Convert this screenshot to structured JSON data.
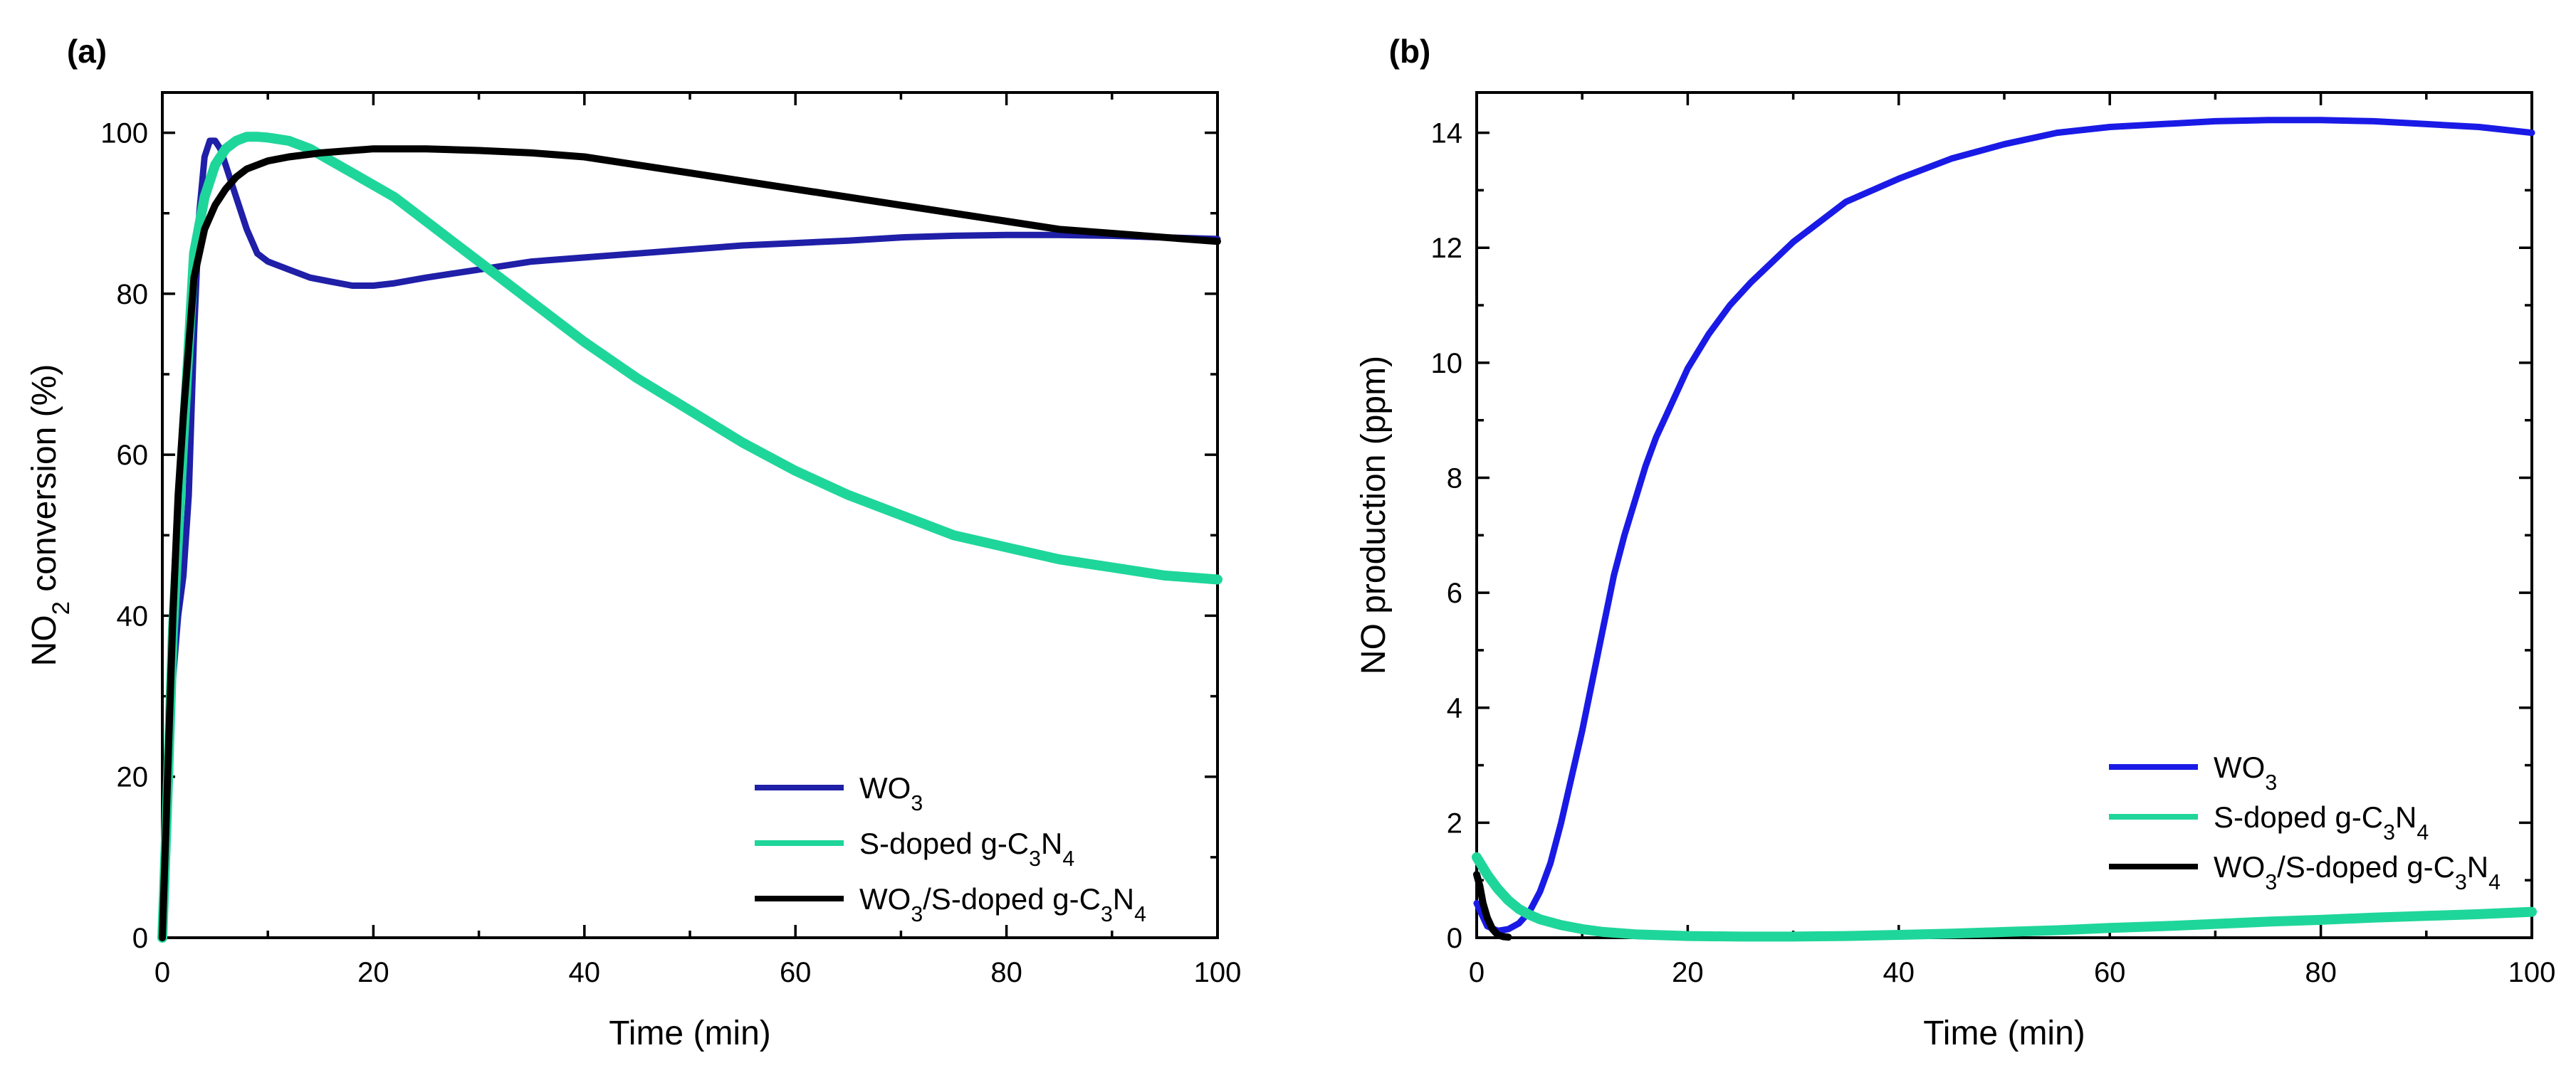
{
  "colors": {
    "WO3_a": "#1f1fa8",
    "WO3_b": "#1a1ae6",
    "SgCN": "#1fd69a",
    "composite": "#000000"
  },
  "chart_data": [
    {
      "type": "line",
      "panel_label": "(a)",
      "xlabel": "Time (min)",
      "ylabel": {
        "pre": "NO",
        "sub": "2",
        "post": " conversion (%)"
      },
      "xlim": [
        0,
        100
      ],
      "ylim": [
        0,
        105
      ],
      "xticks": [
        0,
        20,
        40,
        60,
        80,
        100
      ],
      "yticks": [
        0,
        20,
        40,
        60,
        80,
        100
      ],
      "legend_position": "bottom-right",
      "series": [
        {
          "key": "WO3",
          "label": {
            "pre": "WO",
            "sub": "3",
            "mid": "",
            "sub2": "",
            "post": ""
          },
          "color": "#1f1fa8",
          "x": [
            0,
            0.5,
            1,
            1.5,
            2,
            2.5,
            3,
            3.5,
            4,
            4.5,
            5,
            5.5,
            6,
            7,
            8,
            9,
            10,
            12,
            14,
            16,
            18,
            20,
            22,
            25,
            30,
            35,
            40,
            45,
            50,
            55,
            60,
            65,
            70,
            75,
            80,
            85,
            90,
            95,
            100
          ],
          "y": [
            0,
            15,
            32,
            40,
            45,
            55,
            75,
            90,
            97,
            99,
            99,
            98,
            96,
            92,
            88,
            85,
            84,
            83,
            82,
            81.5,
            81,
            81,
            81.3,
            82,
            83,
            84,
            84.5,
            85,
            85.5,
            86,
            86.3,
            86.6,
            87,
            87.2,
            87.3,
            87.3,
            87.2,
            87,
            86.8
          ]
        },
        {
          "key": "SgCN",
          "label": {
            "pre": "S-doped g-C",
            "sub": "3",
            "mid": "N",
            "sub2": "4",
            "post": ""
          },
          "color": "#1fd69a",
          "x": [
            0,
            0.5,
            1,
            1.5,
            2,
            3,
            4,
            5,
            6,
            7,
            8,
            9,
            10,
            12,
            14,
            16,
            18,
            20,
            22,
            25,
            30,
            35,
            40,
            45,
            50,
            55,
            60,
            65,
            70,
            75,
            80,
            85,
            90,
            95,
            100
          ],
          "y": [
            0,
            18,
            38,
            50,
            62,
            85,
            92,
            96,
            98,
            99,
            99.5,
            99.5,
            99.4,
            99,
            98,
            96.5,
            95,
            93.5,
            92,
            89,
            84,
            79,
            74,
            69.5,
            65.5,
            61.5,
            58,
            55,
            52.5,
            50,
            48.5,
            47,
            46,
            45,
            44.5
          ]
        },
        {
          "key": "composite",
          "label": {
            "pre": "WO",
            "sub": "3",
            "mid": "/S-doped g-C",
            "sub2": "3",
            "post": "N",
            "sub3": "4"
          },
          "color": "#000000",
          "x": [
            0,
            0.5,
            1,
            1.5,
            2,
            3,
            4,
            5,
            6,
            7,
            8,
            10,
            12,
            15,
            20,
            25,
            30,
            35,
            40,
            45,
            50,
            55,
            60,
            65,
            70,
            75,
            80,
            85,
            90,
            95,
            100
          ],
          "y": [
            0,
            20,
            40,
            55,
            65,
            82,
            88,
            91,
            93,
            94.5,
            95.5,
            96.5,
            97,
            97.5,
            98,
            98,
            97.8,
            97.5,
            97,
            96,
            95,
            94,
            93,
            92,
            91,
            90,
            89,
            88,
            87.5,
            87,
            86.5
          ]
        }
      ]
    },
    {
      "type": "line",
      "panel_label": "(b)",
      "xlabel": "Time (min)",
      "ylabel": {
        "pre": "NO production (ppm)",
        "sub": "",
        "post": ""
      },
      "xlim": [
        0,
        100
      ],
      "ylim": [
        0,
        14.7
      ],
      "xticks": [
        0,
        20,
        40,
        60,
        80,
        100
      ],
      "yticks": [
        0,
        2,
        4,
        6,
        8,
        10,
        12,
        14
      ],
      "legend_position": "bottom-center",
      "series": [
        {
          "key": "WO3",
          "label": {
            "pre": "WO",
            "sub": "3",
            "mid": "",
            "sub2": "",
            "post": ""
          },
          "color": "#1a1ae6",
          "x": [
            0,
            1,
            2,
            3,
            4,
            5,
            6,
            7,
            8,
            9,
            10,
            11,
            12,
            13,
            14,
            15,
            16,
            17,
            18,
            20,
            22,
            24,
            26,
            28,
            30,
            35,
            40,
            45,
            50,
            55,
            60,
            65,
            70,
            75,
            80,
            85,
            90,
            95,
            100
          ],
          "y": [
            0.6,
            0.2,
            0.12,
            0.15,
            0.25,
            0.45,
            0.8,
            1.3,
            2.0,
            2.8,
            3.6,
            4.5,
            5.4,
            6.3,
            7.0,
            7.6,
            8.2,
            8.7,
            9.1,
            9.9,
            10.5,
            11.0,
            11.4,
            11.75,
            12.1,
            12.8,
            13.2,
            13.55,
            13.8,
            14.0,
            14.1,
            14.15,
            14.2,
            14.22,
            14.22,
            14.2,
            14.15,
            14.1,
            14.0
          ]
        },
        {
          "key": "SgCN",
          "label": {
            "pre": "S-doped g-C",
            "sub": "3",
            "mid": "N",
            "sub2": "4",
            "post": ""
          },
          "color": "#1fd69a",
          "x": [
            0,
            1,
            2,
            3,
            4,
            5,
            6,
            8,
            10,
            12,
            15,
            20,
            25,
            30,
            35,
            40,
            45,
            50,
            55,
            60,
            65,
            70,
            75,
            80,
            85,
            90,
            95,
            100
          ],
          "y": [
            1.4,
            1.1,
            0.85,
            0.65,
            0.5,
            0.4,
            0.32,
            0.22,
            0.15,
            0.1,
            0.06,
            0.03,
            0.02,
            0.02,
            0.03,
            0.05,
            0.07,
            0.1,
            0.13,
            0.17,
            0.2,
            0.24,
            0.28,
            0.31,
            0.35,
            0.38,
            0.41,
            0.45
          ]
        },
        {
          "key": "composite",
          "label": {
            "pre": "WO",
            "sub": "3",
            "mid": "/S-doped g-C",
            "sub2": "3",
            "post": "N",
            "sub3": "4"
          },
          "color": "#000000",
          "x": [
            0,
            0.3,
            0.6,
            1,
            1.5,
            2,
            2.5,
            3
          ],
          "y": [
            1.1,
            0.9,
            0.6,
            0.35,
            0.15,
            0.05,
            0.02,
            0.01
          ]
        }
      ]
    }
  ]
}
